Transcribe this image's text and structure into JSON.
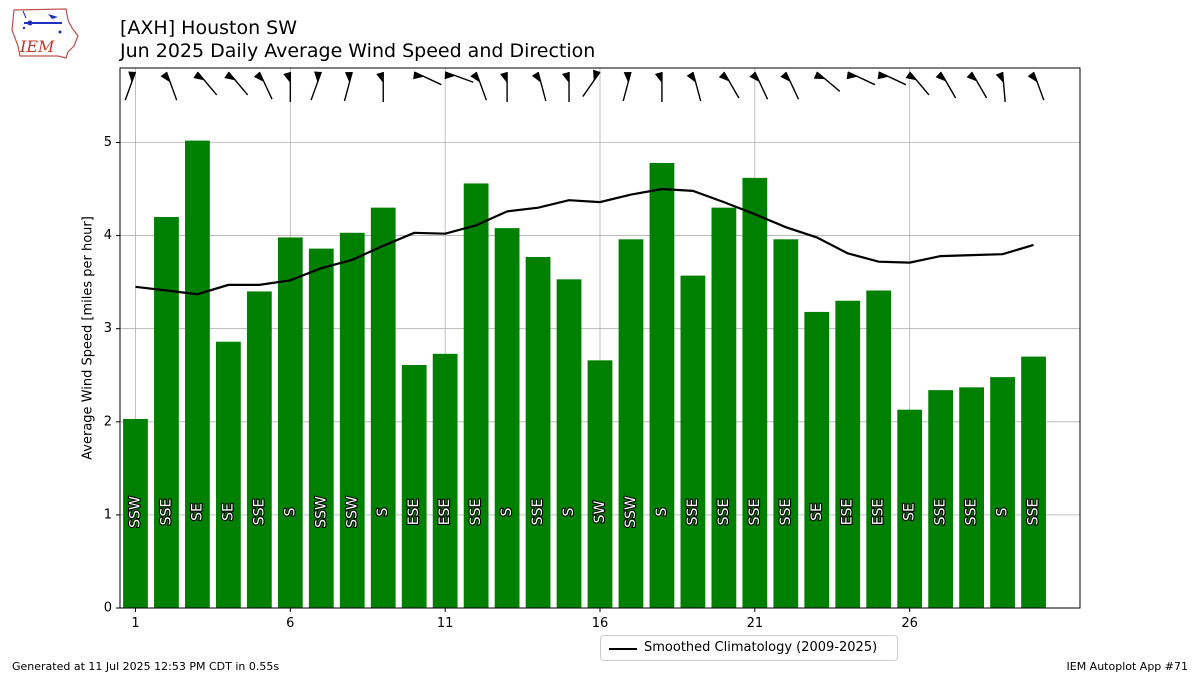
{
  "header": {
    "title": "[AXH] Houston SW",
    "subtitle": "Jun 2025 Daily Average Wind Speed and Direction",
    "logo_text": "IEM"
  },
  "footer": {
    "generated": "Generated at 11 Jul 2025 12:53 PM CDT in 0.55s",
    "app": "IEM Autoplot App #71"
  },
  "chart_data": {
    "type": "bar",
    "title": "Jun 2025 Daily Average Wind Speed and Direction",
    "ylabel": "Average Wind Speed [miles per hour]",
    "xlabel": "",
    "xlim": [
      0.5,
      31.5
    ],
    "ylim": [
      0,
      5.8
    ],
    "x_ticks": [
      1,
      6,
      11,
      16,
      21,
      26
    ],
    "y_ticks": [
      0,
      1,
      2,
      3,
      4,
      5
    ],
    "grid": true,
    "legend_position": "bottom-center",
    "colors": {
      "bars": "#008000",
      "climatology": "#000000",
      "grid": "#b0b0b0"
    },
    "days": [
      1,
      2,
      3,
      4,
      5,
      6,
      7,
      8,
      9,
      10,
      11,
      12,
      13,
      14,
      15,
      16,
      17,
      18,
      19,
      20,
      21,
      22,
      23,
      24,
      25,
      26,
      27,
      28,
      29,
      30
    ],
    "speed": [
      2.03,
      4.2,
      5.02,
      2.86,
      3.4,
      3.98,
      3.86,
      4.03,
      4.3,
      2.61,
      2.73,
      4.56,
      4.08,
      3.77,
      3.53,
      2.66,
      3.96,
      4.78,
      3.57,
      4.3,
      4.62,
      3.96,
      3.18,
      3.3,
      3.41,
      2.13,
      2.34,
      2.37,
      2.48,
      2.7
    ],
    "direction_labels": [
      "SSW",
      "SSE",
      "SE",
      "SE",
      "SSE",
      "S",
      "SSW",
      "SSW",
      "S",
      "ESE",
      "ESE",
      "SSE",
      "S",
      "SSE",
      "S",
      "SW",
      "SSW",
      "S",
      "SSE",
      "SSE",
      "SSE",
      "SSE",
      "SE",
      "ESE",
      "ESE",
      "SE",
      "SSE",
      "SSE",
      "S",
      "SSE"
    ],
    "direction_deg": [
      200,
      160,
      140,
      140,
      155,
      180,
      200,
      195,
      180,
      115,
      110,
      160,
      180,
      165,
      180,
      215,
      195,
      180,
      165,
      150,
      155,
      155,
      130,
      115,
      115,
      140,
      150,
      150,
      175,
      160
    ],
    "series": [
      {
        "name": "Smoothed Climatology (2009-2025)",
        "type": "line",
        "values": [
          3.45,
          3.41,
          3.37,
          3.47,
          3.47,
          3.52,
          3.65,
          3.74,
          3.89,
          4.03,
          4.02,
          4.11,
          4.26,
          4.3,
          4.38,
          4.36,
          4.44,
          4.5,
          4.48,
          4.36,
          4.23,
          4.09,
          3.98,
          3.81,
          3.72,
          3.71,
          3.78,
          3.79,
          3.8,
          3.9
        ]
      }
    ]
  }
}
